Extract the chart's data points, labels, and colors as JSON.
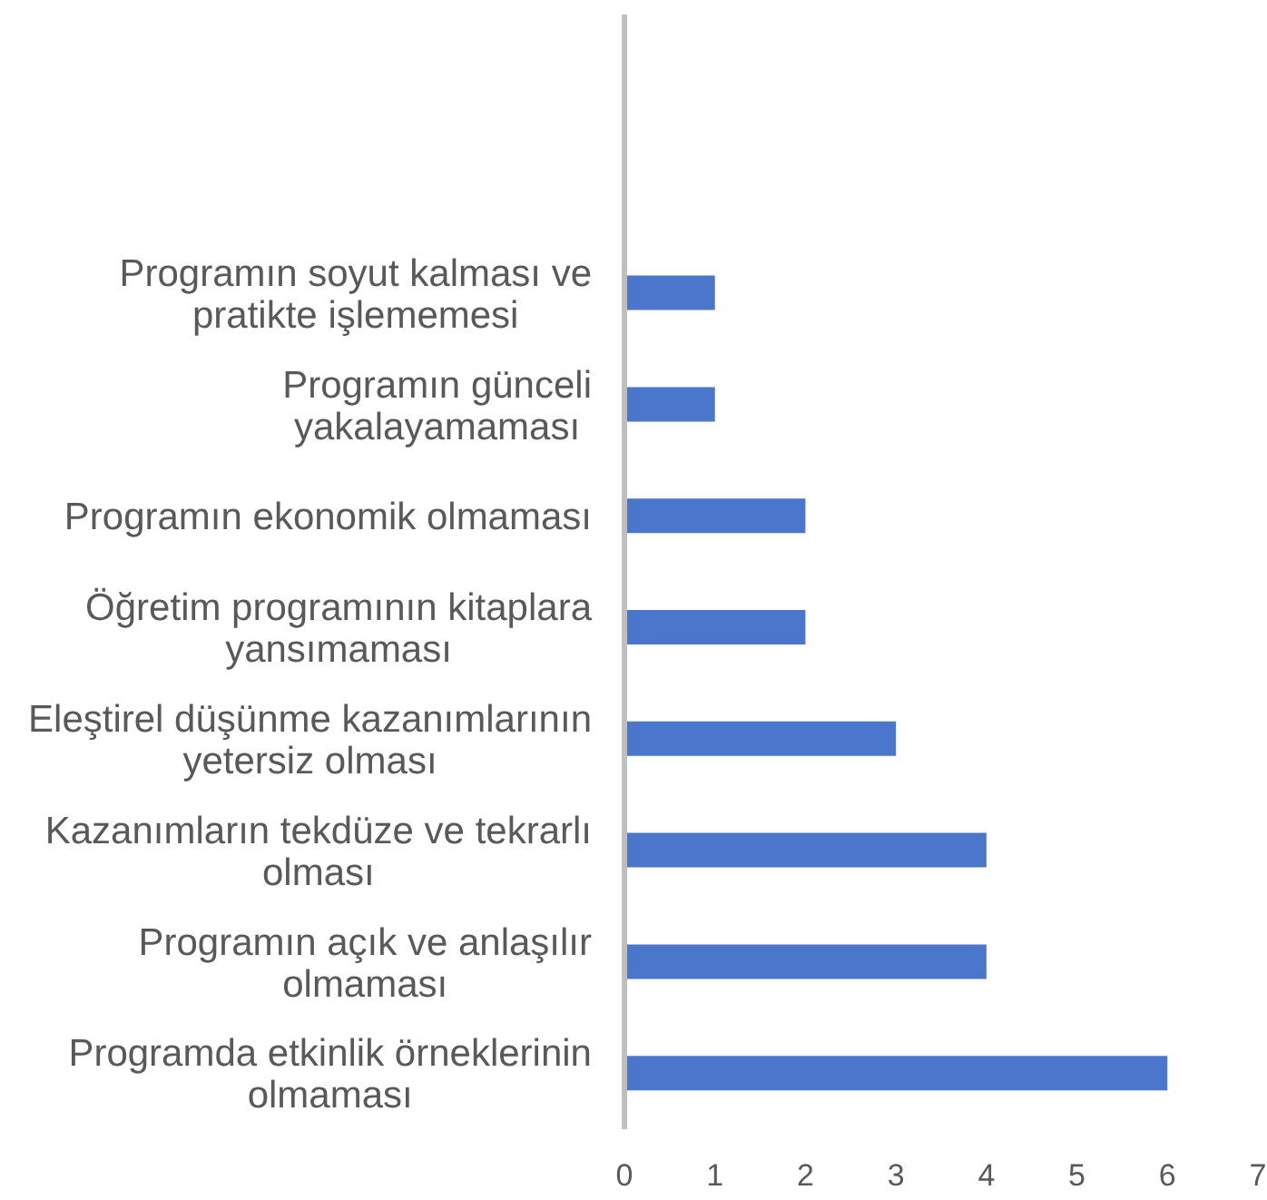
{
  "chart_data": {
    "type": "bar",
    "orientation": "horizontal",
    "categories": [
      null,
      null,
      "Programın soyut kalması ve pratikte işlememesi",
      "Programın günceli yakalayamaması",
      "Programın ekonomik olmaması",
      "Öğretim programının kitaplara yansımaması",
      "Eleştirel düşünme kazanımlarının yetersiz olması",
      "Kazanımların tekdüze ve tekrarlı olması",
      "Programın açık ve anlaşılır olmaması",
      "Programda etkinlik örneklerinin olmaması"
    ],
    "values": [
      null,
      null,
      1,
      1,
      2,
      2,
      3,
      4,
      4,
      6
    ],
    "color": "#4a76cc",
    "xlim": [
      0,
      7
    ],
    "xticks": [
      0,
      1,
      2,
      3,
      4,
      5,
      6,
      7
    ],
    "grid": false,
    "legend": false
  }
}
